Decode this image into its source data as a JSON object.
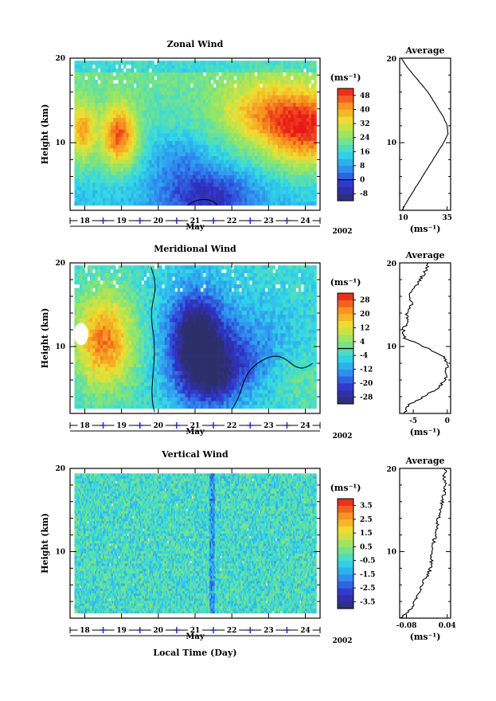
{
  "figure": {
    "xlabel": "Local Time (Day)"
  },
  "chart_data": [
    {
      "type": "heatmap",
      "title": "Zonal Wind",
      "ylabel": "Height (km)",
      "ylim": [
        2,
        20
      ],
      "yticks": [
        10,
        20
      ],
      "xlim": [
        17.6,
        24.4
      ],
      "xticks": [
        "18",
        "19",
        "20",
        "21",
        "22",
        "23",
        "24"
      ],
      "month_label": "May",
      "year_label": "2002",
      "unit": "(ms⁻¹)",
      "colorbar_ticks": [
        "48",
        "40",
        "32",
        "24",
        "16",
        "8",
        "0",
        "-8"
      ],
      "colorbar_range": [
        -12,
        52
      ],
      "zero_contour": true,
      "average": {
        "title": "Average",
        "xlim": [
          8,
          37
        ],
        "xticks": [
          "10",
          "35"
        ],
        "unit": "(ms⁻¹)",
        "height": [
          2,
          3,
          4,
          5,
          6,
          7,
          8,
          9,
          10,
          11,
          12,
          13,
          14,
          15,
          16,
          17,
          18,
          19,
          20
        ],
        "value": [
          9.5,
          12,
          15,
          18,
          21,
          24,
          27,
          30,
          33,
          35.5,
          35,
          33,
          30,
          27,
          24,
          20,
          16,
          12,
          9
        ]
      }
    },
    {
      "type": "heatmap",
      "title": "Meridional Wind",
      "ylabel": "Height (km)",
      "ylim": [
        2,
        20
      ],
      "yticks": [
        10,
        20
      ],
      "xlim": [
        17.6,
        24.4
      ],
      "xticks": [
        "18",
        "19",
        "20",
        "21",
        "22",
        "23",
        "24"
      ],
      "month_label": "May",
      "year_label": "2002",
      "unit": "(ms⁻¹)",
      "colorbar_ticks": [
        "28",
        "20",
        "12",
        "4",
        "-4",
        "-12",
        "-20",
        "-28"
      ],
      "colorbar_range": [
        -32,
        32
      ],
      "zero_contour": true,
      "average": {
        "title": "Average",
        "xlim": [
          -7,
          0.5
        ],
        "xticks": [
          "-5",
          "0"
        ],
        "unit": "(ms⁻¹)",
        "height": [
          2,
          3,
          4,
          5,
          6,
          7,
          8,
          9,
          10,
          11,
          12,
          13,
          14,
          15,
          16,
          17,
          18,
          19,
          20
        ],
        "value": [
          -6.3,
          -5.8,
          -3.5,
          -1.5,
          -0.3,
          -0.1,
          0,
          -0.8,
          -3.5,
          -6.2,
          -6.5,
          -5.8,
          -6,
          -5.2,
          -5.6,
          -4.8,
          -4,
          -3.2,
          -2.8
        ]
      }
    },
    {
      "type": "heatmap",
      "title": "Vertical Wind",
      "ylabel": "Height (km)",
      "ylim": [
        2,
        20
      ],
      "yticks": [
        10,
        20
      ],
      "xlim": [
        17.6,
        24.4
      ],
      "xticks": [
        "18",
        "19",
        "20",
        "21",
        "22",
        "23",
        "24"
      ],
      "month_label": "May",
      "year_label": "2002",
      "unit": "(ms⁻¹)",
      "colorbar_ticks": [
        "3.5",
        "2.5",
        "1.5",
        "0.5",
        "-0.5",
        "-1.5",
        "-2.5",
        "-3.5"
      ],
      "colorbar_range": [
        -4,
        4
      ],
      "zero_contour": false,
      "average": {
        "title": "Average",
        "xlim": [
          -0.1,
          0.05
        ],
        "xticks": [
          "-0.08",
          "0.04"
        ],
        "unit": "(ms⁻¹)",
        "height": [
          2,
          3,
          4,
          5,
          6,
          7,
          8,
          9,
          10,
          11,
          12,
          13,
          14,
          15,
          16,
          17,
          18,
          19,
          20
        ],
        "value": [
          -0.095,
          -0.07,
          -0.055,
          -0.04,
          -0.035,
          -0.02,
          -0.01,
          -0.005,
          -0.01,
          0.0,
          0.005,
          0.01,
          0.015,
          0.02,
          0.025,
          0.03,
          0.035,
          0.03,
          0.035
        ]
      }
    }
  ]
}
